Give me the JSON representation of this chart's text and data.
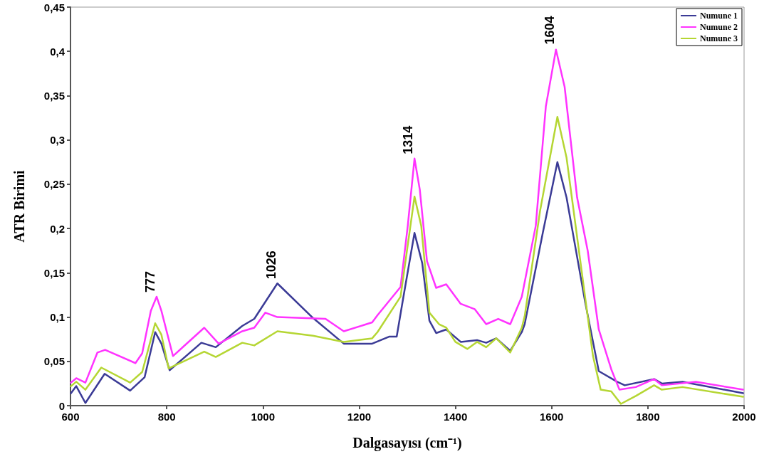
{
  "chart_data": {
    "type": "line",
    "xlabel": "Dalgasayısı (cm⁻¹)",
    "ylabel": "ATR Birimi",
    "xlim": [
      600,
      2000
    ],
    "xticks": [
      600,
      800,
      1000,
      1200,
      1400,
      1600,
      1800,
      2000
    ],
    "ylim": [
      0,
      0.45
    ],
    "yticks": [
      0,
      {
        "value": 0.05,
        "label": "0,05"
      },
      {
        "value": 0.1,
        "label": "0,1"
      },
      {
        "value": 0.15,
        "label": "0,15"
      },
      {
        "value": 0.2,
        "label": "0,2"
      },
      {
        "value": 0.25,
        "label": "0,25"
      },
      {
        "value": 0.3,
        "label": "0,3"
      },
      {
        "value": 0.35,
        "label": "0,35"
      },
      {
        "value": 0.4,
        "label": "0,4"
      },
      {
        "value": 0.45,
        "label": "0,45"
      }
    ],
    "grid": false,
    "legend": "top right",
    "marker": "none",
    "series": [
      {
        "name": "Numune 1",
        "color": "#3b3b96",
        "x": [
          601,
          612,
          631,
          671,
          724,
          754,
          776,
          789,
          806,
          872,
          902,
          957,
          982,
          1030,
          1104,
          1168,
          1227,
          1263,
          1278,
          1292,
          1315,
          1331,
          1346,
          1360,
          1381,
          1411,
          1445,
          1464,
          1485,
          1514,
          1538,
          1544,
          1582,
          1612,
          1631,
          1670,
          1698,
          1736,
          1752,
          1813,
          1829,
          1872,
          1998
        ],
        "values": [
          0.014,
          0.022,
          0.003,
          0.036,
          0.017,
          0.032,
          0.083,
          0.07,
          0.04,
          0.071,
          0.066,
          0.09,
          0.098,
          0.138,
          0.099,
          0.07,
          0.07,
          0.078,
          0.078,
          0.123,
          0.195,
          0.161,
          0.096,
          0.082,
          0.086,
          0.072,
          0.074,
          0.071,
          0.076,
          0.062,
          0.083,
          0.092,
          0.196,
          0.275,
          0.235,
          0.116,
          0.039,
          0.027,
          0.023,
          0.03,
          0.025,
          0.027,
          0.014
        ]
      },
      {
        "name": "Numune 2",
        "color": "#ff33ff",
        "x": [
          601,
          612,
          631,
          656,
          672,
          735,
          749,
          767,
          779,
          789,
          813,
          878,
          908,
          957,
          982,
          1005,
          1030,
          1130,
          1168,
          1227,
          1238,
          1286,
          1301,
          1315,
          1326,
          1341,
          1360,
          1381,
          1411,
          1440,
          1464,
          1489,
          1514,
          1538,
          1567,
          1588,
          1609,
          1627,
          1653,
          1675,
          1698,
          1724,
          1741,
          1775,
          1813,
          1829,
          1900,
          1998
        ],
        "values": [
          0.026,
          0.031,
          0.026,
          0.06,
          0.063,
          0.048,
          0.059,
          0.107,
          0.123,
          0.107,
          0.056,
          0.088,
          0.07,
          0.084,
          0.088,
          0.105,
          0.1,
          0.098,
          0.084,
          0.094,
          0.102,
          0.134,
          0.203,
          0.279,
          0.244,
          0.163,
          0.133,
          0.137,
          0.115,
          0.109,
          0.092,
          0.098,
          0.092,
          0.123,
          0.203,
          0.338,
          0.402,
          0.36,
          0.235,
          0.175,
          0.086,
          0.041,
          0.018,
          0.021,
          0.03,
          0.023,
          0.027,
          0.018
        ]
      },
      {
        "name": "Numune 3",
        "color": "#b5d633",
        "x": [
          601,
          612,
          631,
          664,
          724,
          749,
          776,
          789,
          804,
          878,
          902,
          957,
          982,
          1030,
          1104,
          1168,
          1227,
          1238,
          1286,
          1315,
          1329,
          1346,
          1366,
          1381,
          1400,
          1425,
          1445,
          1464,
          1485,
          1514,
          1538,
          1544,
          1576,
          1612,
          1631,
          1670,
          1686,
          1702,
          1724,
          1744,
          1775,
          1813,
          1829,
          1872,
          1998
        ],
        "values": [
          0.022,
          0.027,
          0.018,
          0.043,
          0.026,
          0.038,
          0.093,
          0.08,
          0.042,
          0.061,
          0.055,
          0.071,
          0.068,
          0.084,
          0.079,
          0.072,
          0.076,
          0.083,
          0.123,
          0.236,
          0.203,
          0.105,
          0.092,
          0.088,
          0.072,
          0.064,
          0.072,
          0.066,
          0.076,
          0.06,
          0.088,
          0.101,
          0.22,
          0.326,
          0.28,
          0.121,
          0.056,
          0.018,
          0.016,
          0.002,
          0.011,
          0.023,
          0.018,
          0.021,
          0.01
        ]
      }
    ],
    "annotations": [
      {
        "text": "777",
        "x": 779,
        "y": 0.123
      },
      {
        "text": "1026",
        "x": 1030,
        "y": 0.138
      },
      {
        "text": "1314",
        "x": 1315,
        "y": 0.279
      },
      {
        "text": "1604",
        "x": 1609,
        "y": 0.403
      }
    ]
  }
}
